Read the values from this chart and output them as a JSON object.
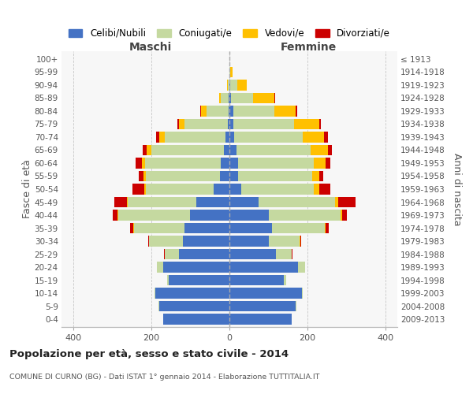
{
  "age_groups": [
    "0-4",
    "5-9",
    "10-14",
    "15-19",
    "20-24",
    "25-29",
    "30-34",
    "35-39",
    "40-44",
    "45-49",
    "50-54",
    "55-59",
    "60-64",
    "65-69",
    "70-74",
    "75-79",
    "80-84",
    "85-89",
    "90-94",
    "95-99",
    "100+"
  ],
  "birth_years": [
    "2009-2013",
    "2004-2008",
    "1999-2003",
    "1994-1998",
    "1989-1993",
    "1984-1988",
    "1979-1983",
    "1974-1978",
    "1969-1973",
    "1964-1968",
    "1959-1963",
    "1954-1958",
    "1949-1953",
    "1944-1948",
    "1939-1943",
    "1934-1938",
    "1929-1933",
    "1924-1928",
    "1919-1923",
    "1914-1918",
    "≤ 1913"
  ],
  "maschi": {
    "celibe": [
      170,
      180,
      190,
      155,
      170,
      130,
      120,
      115,
      100,
      85,
      40,
      25,
      22,
      14,
      10,
      5,
      3,
      2,
      0,
      0,
      0
    ],
    "coniugato": [
      0,
      1,
      2,
      5,
      15,
      35,
      85,
      130,
      185,
      175,
      175,
      190,
      195,
      185,
      155,
      110,
      55,
      20,
      5,
      0,
      0
    ],
    "vedovo": [
      0,
      0,
      0,
      0,
      0,
      0,
      0,
      1,
      2,
      3,
      4,
      5,
      8,
      12,
      15,
      15,
      15,
      5,
      2,
      0,
      0
    ],
    "divorziato": [
      0,
      0,
      0,
      0,
      1,
      2,
      3,
      8,
      12,
      32,
      30,
      12,
      15,
      12,
      8,
      3,
      2,
      0,
      0,
      0,
      0
    ]
  },
  "femmine": {
    "nubile": [
      160,
      170,
      185,
      140,
      175,
      120,
      100,
      110,
      100,
      75,
      30,
      22,
      22,
      18,
      12,
      10,
      10,
      5,
      2,
      0,
      0
    ],
    "coniugata": [
      0,
      1,
      2,
      5,
      18,
      40,
      80,
      135,
      185,
      195,
      185,
      190,
      195,
      190,
      175,
      155,
      105,
      55,
      18,
      3,
      0
    ],
    "vedova": [
      0,
      0,
      0,
      0,
      0,
      0,
      1,
      2,
      4,
      8,
      15,
      18,
      30,
      45,
      55,
      65,
      55,
      55,
      25,
      5,
      0
    ],
    "divorziata": [
      0,
      0,
      0,
      0,
      1,
      2,
      3,
      8,
      12,
      45,
      28,
      10,
      12,
      10,
      10,
      5,
      3,
      2,
      0,
      0,
      0
    ]
  },
  "colors": {
    "celibe": "#4472c4",
    "coniugato": "#c5d9a0",
    "vedovo": "#ffc000",
    "divorziato": "#cc0000"
  },
  "xlim": 430,
  "title": "Popolazione per età, sesso e stato civile - 2014",
  "subtitle": "COMUNE DI CURNO (BG) - Dati ISTAT 1° gennaio 2014 - Elaborazione TUTTITALIA.IT",
  "ylabel_left": "Fasce di età",
  "ylabel_right": "Anni di nascita",
  "xlabel_maschi": "Maschi",
  "xlabel_femmine": "Femmine",
  "legend_labels": [
    "Celibi/Nubili",
    "Coniugati/e",
    "Vedovi/e",
    "Divorziati/e"
  ]
}
